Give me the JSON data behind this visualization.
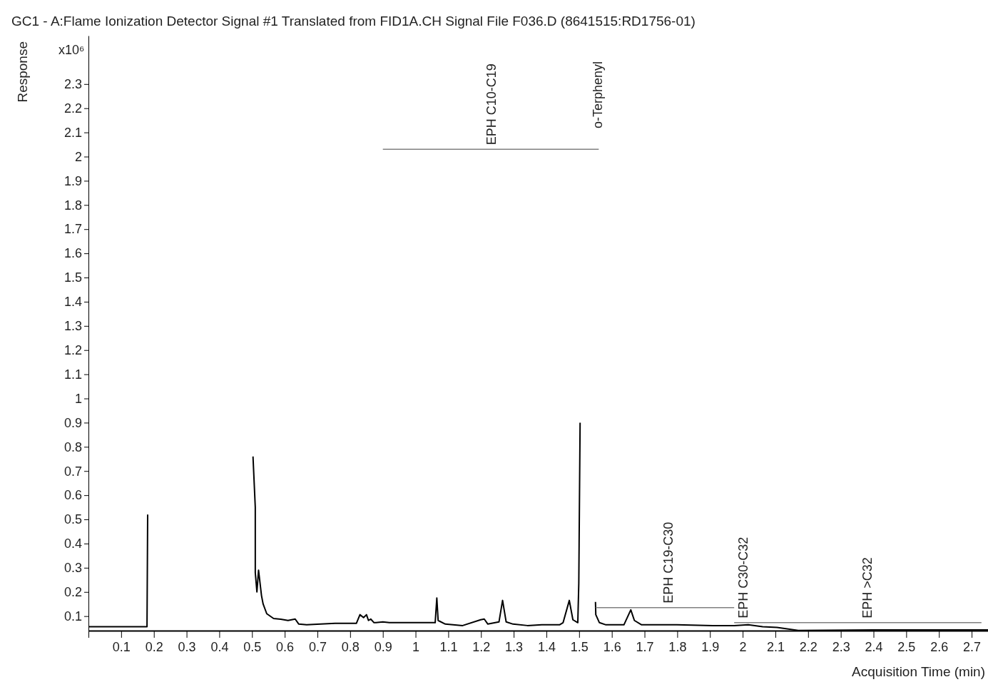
{
  "chart_data": {
    "type": "line",
    "title": "GC1 - A:Flame Ionization Detector Signal #1 Translated from FID1A.CH Signal File F036.D (8641515:RD1756-01)",
    "xlabel": "Acquisition Time (min)",
    "ylabel": "Response",
    "xlim": [
      0,
      2.75
    ],
    "ylim": [
      0.04,
      2.5
    ],
    "xticks": [
      {
        "value": 0,
        "label": null
      },
      0.1,
      0.2,
      0.3,
      0.4,
      0.5,
      0.6,
      0.7,
      0.8,
      0.9,
      1,
      1.1,
      1.2,
      1.3,
      1.4,
      1.5,
      1.6,
      1.7,
      1.8,
      1.9,
      2,
      2.1,
      2.2,
      2.3,
      2.4,
      2.5,
      2.6,
      2.7
    ],
    "yticks": [
      0.1,
      0.2,
      0.3,
      0.4,
      0.5,
      0.6,
      0.7,
      0.8,
      0.9,
      1,
      1.1,
      1.2,
      1.3,
      1.4,
      1.5,
      1.6,
      1.7,
      1.8,
      1.9,
      2,
      2.1,
      2.2,
      2.3
    ],
    "grid": false,
    "marker": "none",
    "line_style": "solid",
    "series": [
      {
        "color": "#000000",
        "x": [
          0,
          0.179,
          0.181,
          0.185,
          0.497,
          0.503,
          0.51,
          0.51,
          0.515,
          0.52,
          0.529,
          0.534,
          0.545,
          0.566,
          0.588,
          0.61,
          0.632,
          0.643,
          0.667,
          0.71,
          0.754,
          0.819,
          0.83,
          0.841,
          0.85,
          0.856,
          0.863,
          0.873,
          0.879,
          0.9,
          0.92,
          1.06,
          1.065,
          1.069,
          1.091,
          1.144,
          1.199,
          1.21,
          1.221,
          1.255,
          1.266,
          1.277,
          1.298,
          1.342,
          1.386,
          1.44,
          1.451,
          1.47,
          1.481,
          1.496,
          1.499,
          1.503,
          1.505,
          1.54,
          1.55,
          1.551,
          1.562,
          1.582,
          1.637,
          1.658,
          1.669,
          1.691,
          1.799,
          1.908,
          1.974,
          2.017,
          2.061,
          2.105,
          2.17,
          2.4,
          2.6,
          2.75
        ],
        "values": [
          0.056,
          0.056,
          0.52,
          null,
          null,
          0.76,
          0.55,
          0.28,
          0.2,
          0.29,
          0.185,
          0.15,
          0.11,
          0.09,
          0.087,
          0.082,
          0.088,
          0.067,
          0.064,
          0.067,
          0.07,
          0.07,
          0.106,
          0.094,
          0.106,
          0.082,
          0.088,
          0.073,
          0.073,
          0.076,
          0.073,
          0.073,
          0.175,
          0.082,
          0.067,
          0.061,
          0.085,
          0.088,
          0.067,
          0.076,
          0.165,
          0.076,
          0.067,
          0.061,
          0.064,
          0.064,
          0.073,
          0.165,
          0.085,
          0.073,
          0.235,
          0.9,
          null,
          null,
          0.159,
          0.106,
          0.073,
          0.064,
          0.064,
          0.126,
          0.082,
          0.064,
          0.064,
          0.061,
          0.061,
          0.064,
          0.056,
          0.053,
          0.041,
          0.043,
          0.043,
          0.043
        ]
      },
      {
        "color": "#808080",
        "x": [
          0.9,
          1.56
        ],
        "values": [
          2.03,
          2.03
        ]
      },
      {
        "color": "#808080",
        "x": [
          1.551,
          1.974
        ],
        "values": [
          0.135,
          0.135
        ]
      },
      {
        "color": "#808080",
        "x": [
          1.974,
          2.73
        ],
        "values": [
          0.073,
          0.073
        ]
      }
    ],
    "annotations": [
      "x10⁶",
      {
        "text": "EPH C10-C19",
        "x": 1.23,
        "y": 2.03
      },
      "o-Terphenyl",
      {
        "text": "EPH C19-C30",
        "x": 1.77,
        "y": 0.135
      },
      {
        "text": "EPH C30-C32",
        "x": 2.0,
        "y": 0.073
      },
      {
        "text": "EPH >C32",
        "x": 2.38,
        "y": 0.073
      }
    ]
  }
}
